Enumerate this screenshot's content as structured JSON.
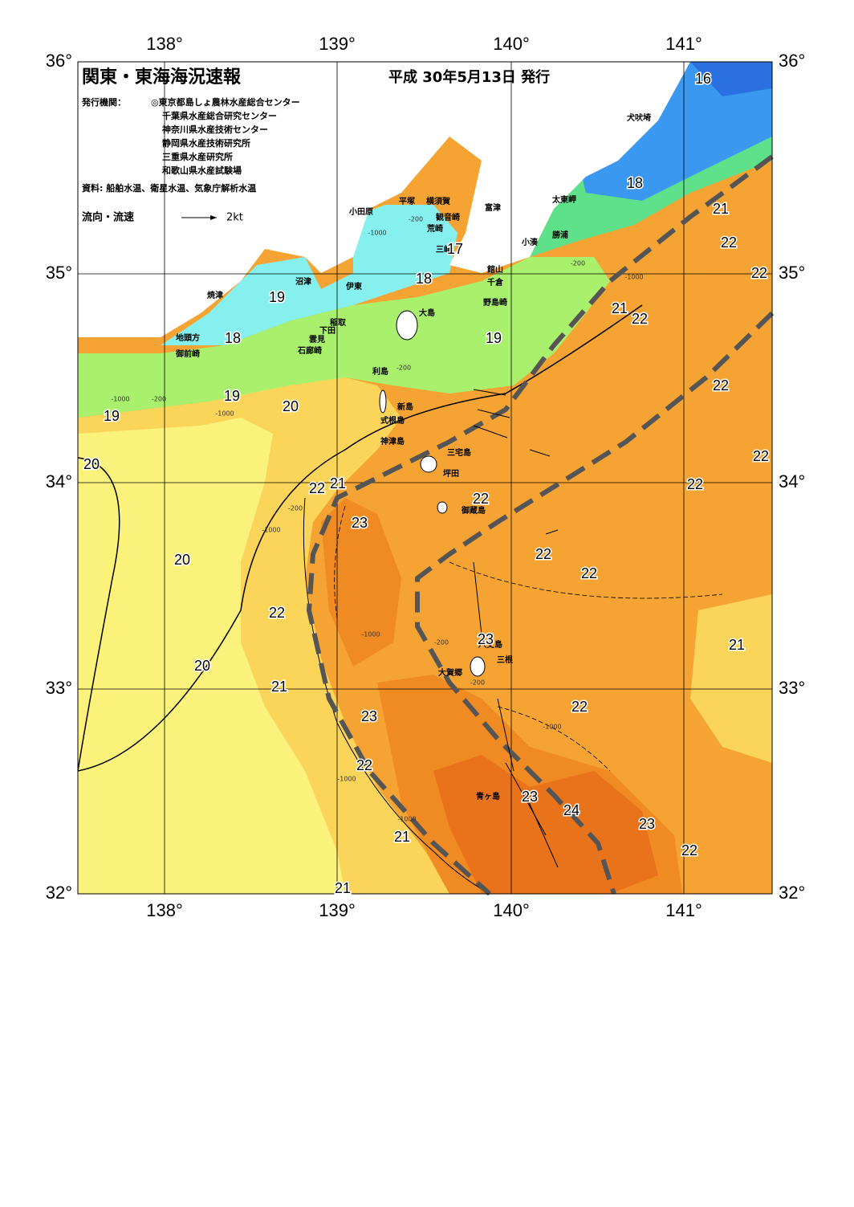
{
  "header": {
    "title": "関東・東海海況速報",
    "date": "平成 30年5月13日 発行",
    "issuer_label": "発行機関：",
    "issuers": [
      "◎東京都島しょ農林水産総合センター",
      "千葉県水産総合研究センター",
      "神奈川県水産技術センター",
      "静岡県水産技術研究所",
      "三重県水産研究所",
      "和歌山県水産試験場"
    ],
    "sources": "資料: 船舶水温、衛星水温、気象庁解析水温",
    "legend_label": "流向・流速",
    "legend_scale": "2kt"
  },
  "axes": {
    "lon_labels": [
      "138°",
      "139°",
      "140°",
      "141°"
    ],
    "lat_labels": [
      "36°",
      "35°",
      "34°",
      "33°",
      "32°"
    ]
  },
  "places": [
    "犬吠埼",
    "太東岬",
    "勝浦",
    "小湊",
    "富津",
    "館山",
    "千倉",
    "野島崎",
    "平塚",
    "横須賀",
    "観音崎",
    "荒崎",
    "三崎",
    "小田原",
    "沼津",
    "伊東",
    "焼津",
    "大島",
    "稲取",
    "下田",
    "雲見",
    "石廊崎",
    "地頭方",
    "御前崎",
    "利島",
    "新島",
    "式根島",
    "神津島",
    "三宅島",
    "坪田",
    "御蔵島",
    "八丈島",
    "三根",
    "大賀郷",
    "青ヶ島"
  ],
  "temperatures": [
    "16",
    "18",
    "21",
    "22",
    "22",
    "17",
    "18",
    "19",
    "18",
    "19",
    "21",
    "22",
    "19",
    "20",
    "19",
    "20",
    "22",
    "22",
    "22",
    "21",
    "22",
    "22",
    "23",
    "20",
    "22",
    "22",
    "22",
    "23",
    "21",
    "20",
    "21",
    "22",
    "23",
    "22",
    "23",
    "24",
    "23",
    "22",
    "21",
    "21"
  ],
  "depths": [
    "-200",
    "-1000",
    "-200",
    "-1000",
    "-200",
    "-200",
    "-1000",
    "-1000",
    "-200",
    "-1000",
    "-1000",
    "-200",
    "-1000",
    "-1000",
    "-200",
    "-1000"
  ]
}
